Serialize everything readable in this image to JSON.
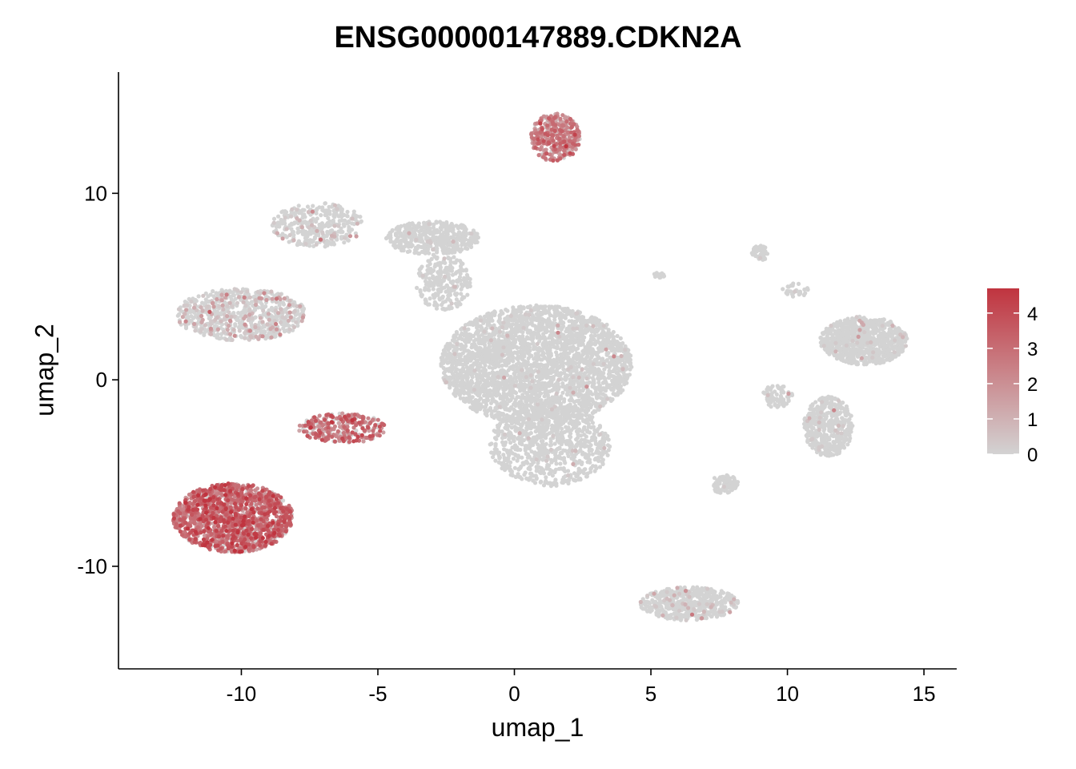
{
  "chart_data": {
    "type": "scatter",
    "title": "ENSG00000147889.CDKN2A",
    "xlabel": "umap_1",
    "ylabel": "umap_2",
    "xlim": [
      -14.5,
      16.2
    ],
    "ylim": [
      -15.5,
      16.5
    ],
    "xticks": [
      -10,
      -5,
      0,
      5,
      10,
      15
    ],
    "yticks": [
      -10,
      0,
      10
    ],
    "grid": false,
    "color_scale": {
      "low": "#d3d3d3",
      "high": "#c0343f",
      "min": 0,
      "max": 4.7,
      "ticks": [
        0,
        1,
        2,
        3,
        4
      ]
    },
    "legend_position": "right",
    "clusters": [
      {
        "cx": -10.3,
        "cy": -7.4,
        "rx": 2.2,
        "ry": 1.85,
        "n": 1500,
        "expr_mean": 2.8,
        "expr_frac": 0.9
      },
      {
        "cx": -10.0,
        "cy": 3.5,
        "rx": 2.4,
        "ry": 1.4,
        "n": 700,
        "expr_mean": 0.6,
        "expr_frac": 0.25
      },
      {
        "cx": -6.3,
        "cy": -2.6,
        "rx": 1.6,
        "ry": 0.8,
        "n": 300,
        "expr_mean": 2.6,
        "expr_frac": 0.8
      },
      {
        "cx": -7.2,
        "cy": 8.3,
        "rx": 1.7,
        "ry": 1.2,
        "n": 350,
        "expr_mean": 0.5,
        "expr_frac": 0.12
      },
      {
        "cx": -3.0,
        "cy": 7.6,
        "rx": 1.7,
        "ry": 0.9,
        "n": 450,
        "expr_mean": 0.1,
        "expr_frac": 0.02
      },
      {
        "cx": -2.6,
        "cy": 5.2,
        "rx": 1.0,
        "ry": 1.5,
        "n": 250,
        "expr_mean": 0.1,
        "expr_frac": 0.02
      },
      {
        "cx": 0.8,
        "cy": 0.8,
        "rx": 3.5,
        "ry": 3.2,
        "n": 3000,
        "expr_mean": 0.1,
        "expr_frac": 0.02
      },
      {
        "cx": 1.3,
        "cy": -3.5,
        "rx": 2.2,
        "ry": 2.2,
        "n": 800,
        "expr_mean": 0.1,
        "expr_frac": 0.02
      },
      {
        "cx": 1.5,
        "cy": 13.0,
        "rx": 0.9,
        "ry": 1.3,
        "n": 350,
        "expr_mean": 2.2,
        "expr_frac": 0.85
      },
      {
        "cx": 12.8,
        "cy": 2.1,
        "rx": 1.6,
        "ry": 1.3,
        "n": 800,
        "expr_mean": 0.1,
        "expr_frac": 0.03
      },
      {
        "cx": 11.5,
        "cy": -2.5,
        "rx": 0.9,
        "ry": 1.6,
        "n": 450,
        "expr_mean": 0.1,
        "expr_frac": 0.03
      },
      {
        "cx": 9.6,
        "cy": -0.9,
        "rx": 0.6,
        "ry": 0.6,
        "n": 70,
        "expr_mean": 0.2,
        "expr_frac": 0.05
      },
      {
        "cx": 6.4,
        "cy": -12.0,
        "rx": 1.8,
        "ry": 0.9,
        "n": 500,
        "expr_mean": 0.3,
        "expr_frac": 0.1
      },
      {
        "cx": 7.7,
        "cy": -5.6,
        "rx": 0.5,
        "ry": 0.5,
        "n": 80,
        "expr_mean": 0.1,
        "expr_frac": 0.02
      },
      {
        "cx": 9.0,
        "cy": 6.8,
        "rx": 0.3,
        "ry": 0.4,
        "n": 50,
        "expr_mean": 0.1,
        "expr_frac": 0.02
      },
      {
        "cx": 10.3,
        "cy": 4.8,
        "rx": 0.5,
        "ry": 0.4,
        "n": 30,
        "expr_mean": 0.1,
        "expr_frac": 0.02
      },
      {
        "cx": 5.3,
        "cy": 5.6,
        "rx": 0.2,
        "ry": 0.15,
        "n": 15,
        "expr_mean": 0.1,
        "expr_frac": 0.02
      }
    ]
  }
}
